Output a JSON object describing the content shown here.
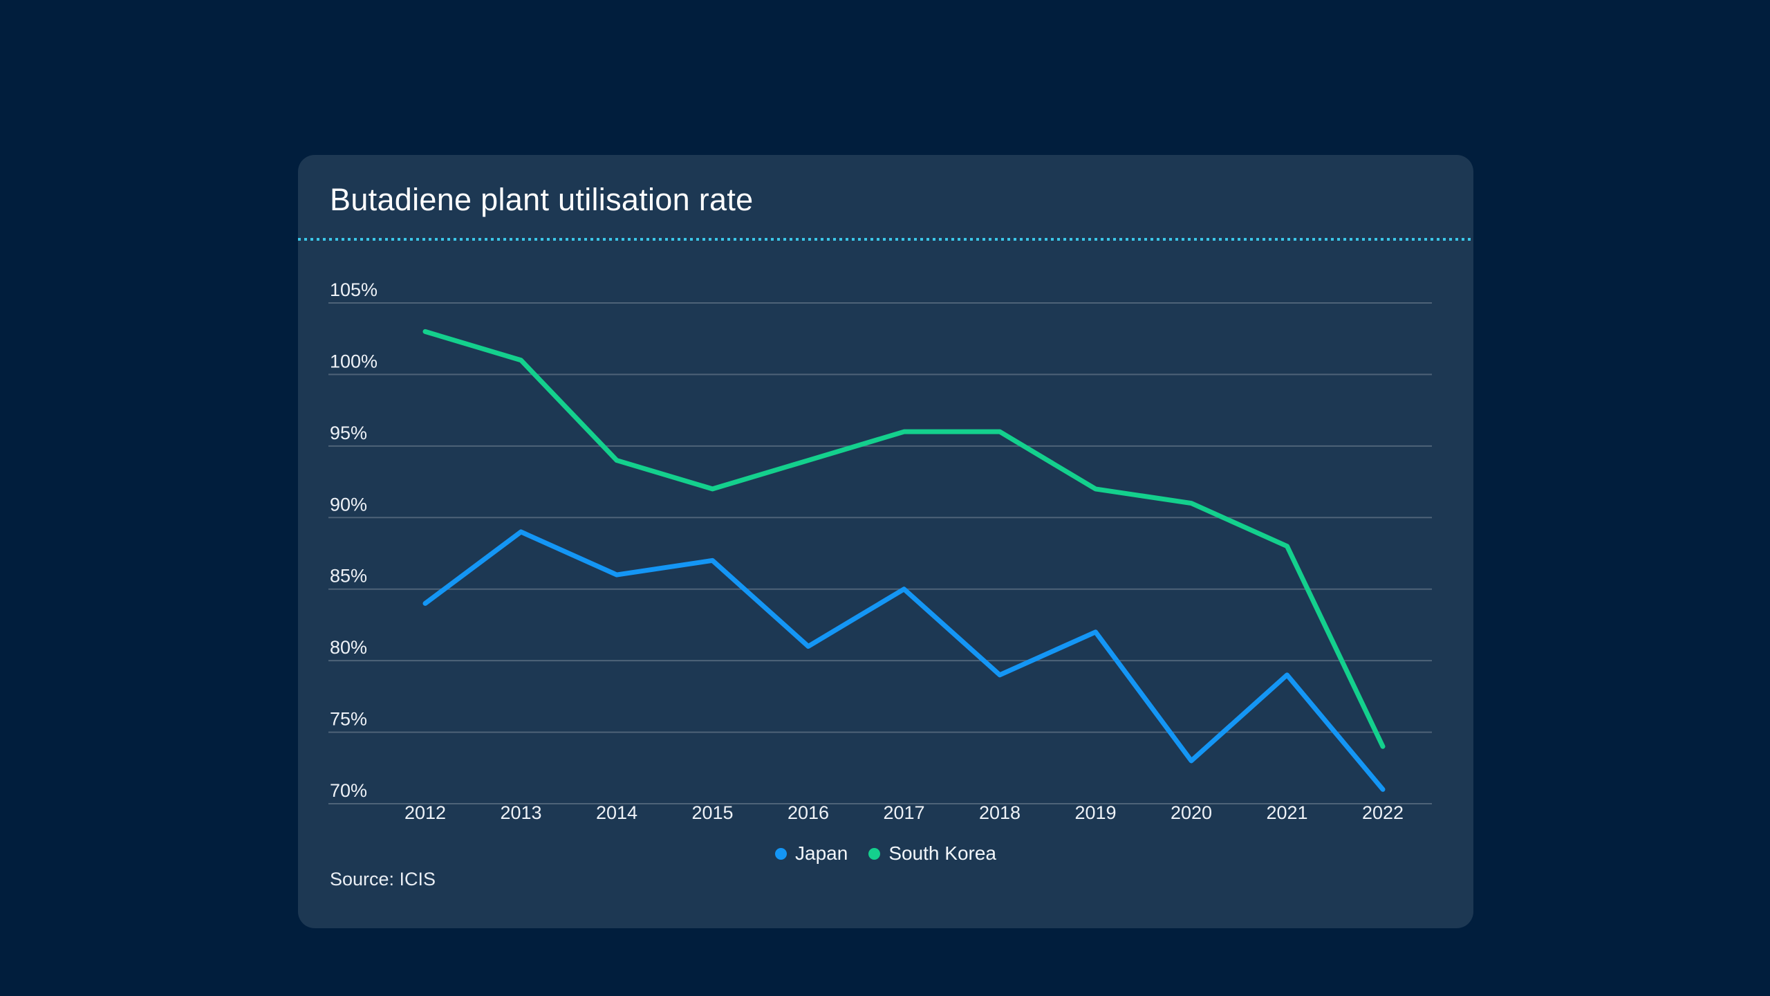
{
  "page": {
    "background": "#011e3d"
  },
  "card": {
    "background": "#1d3853",
    "title": "Butadiene plant utilisation rate",
    "separator_color": "#3bc7e8",
    "source": "Source: ICIS"
  },
  "legend": {
    "items": [
      {
        "label": "Japan",
        "color": "#1496f5"
      },
      {
        "label": "South Korea",
        "color": "#14d08d"
      }
    ]
  },
  "chart_data": {
    "type": "line",
    "title": "Butadiene plant utilisation rate",
    "x": [
      2012,
      2013,
      2014,
      2015,
      2016,
      2017,
      2018,
      2019,
      2020,
      2021,
      2022
    ],
    "series": [
      {
        "name": "Japan",
        "color": "#1496f5",
        "values": [
          84,
          89,
          86,
          87,
          81,
          85,
          79,
          82,
          73,
          79,
          71
        ]
      },
      {
        "name": "South Korea",
        "color": "#14d08d",
        "values": [
          103,
          101,
          94,
          92,
          94,
          96,
          96,
          92,
          91,
          88,
          74
        ]
      }
    ],
    "ylim": [
      70,
      105
    ],
    "ytick_step": 5,
    "ytick_suffix": "%",
    "grid": true,
    "gridline_color": "rgba(255,255,255,0.22)",
    "legend_position": "bottom-center",
    "source": "Source: ICIS"
  }
}
